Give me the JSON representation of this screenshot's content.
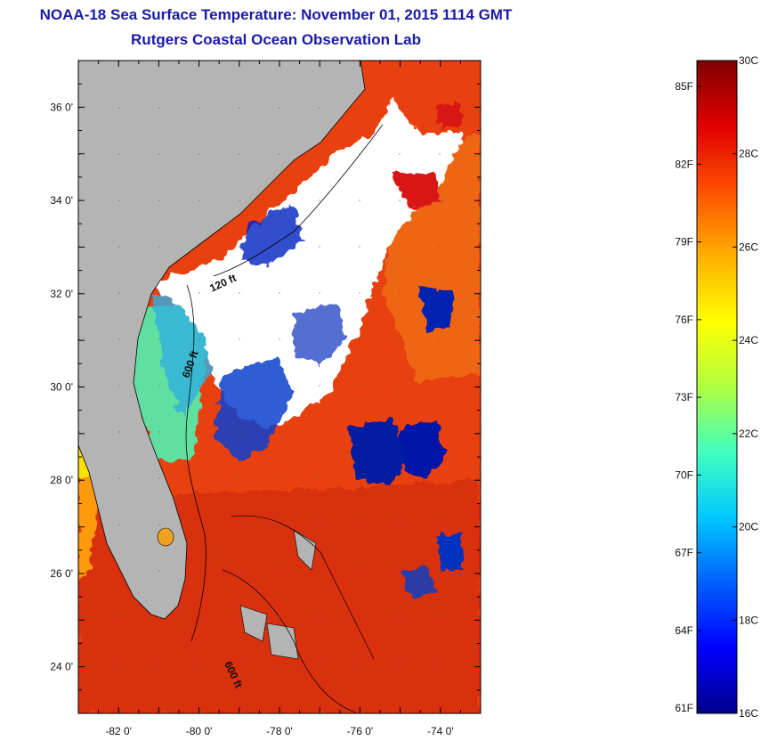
{
  "title": "NOAA-18 Sea Surface Temperature:  November 01, 2015 1114 GMT",
  "subtitle": "Rutgers Coastal Ocean Observation Lab",
  "map": {
    "lon_range": [
      -83,
      -73
    ],
    "lat_range": [
      23,
      37
    ],
    "lat_ticks": [
      {
        "value": 24,
        "label": "24 0'"
      },
      {
        "value": 26,
        "label": "26 0'"
      },
      {
        "value": 28,
        "label": "28 0'"
      },
      {
        "value": 30,
        "label": "30 0'"
      },
      {
        "value": 32,
        "label": "32 0'"
      },
      {
        "value": 34,
        "label": "34 0'"
      },
      {
        "value": 36,
        "label": "36 0'"
      }
    ],
    "lon_ticks": [
      {
        "value": -82,
        "label": "-82 0'"
      },
      {
        "value": -80,
        "label": "-80 0'"
      },
      {
        "value": -78,
        "label": "-78 0'"
      },
      {
        "value": -76,
        "label": "-76 0'"
      },
      {
        "value": -74,
        "label": "-74 0'"
      }
    ],
    "contour_labels": [
      "120 ft",
      "600 ft",
      "600 ft"
    ],
    "colors": {
      "land": "#b4b4b4",
      "cloud": "#ffffff",
      "warm_water": "#e83a10",
      "hot_water": "#c81414"
    }
  },
  "colorbar": {
    "celsius": [
      {
        "value": 30,
        "label": "30C"
      },
      {
        "value": 28,
        "label": "28C"
      },
      {
        "value": 26,
        "label": "26C"
      },
      {
        "value": 24,
        "label": "24C"
      },
      {
        "value": 22,
        "label": "22C"
      },
      {
        "value": 20,
        "label": "20C"
      },
      {
        "value": 18,
        "label": "18C"
      },
      {
        "value": 16,
        "label": "16C"
      }
    ],
    "fahrenheit": [
      {
        "value": 85,
        "label": "85F"
      },
      {
        "value": 82,
        "label": "82F"
      },
      {
        "value": 79,
        "label": "79F"
      },
      {
        "value": 76,
        "label": "76F"
      },
      {
        "value": 73,
        "label": "73F"
      },
      {
        "value": 70,
        "label": "70F"
      },
      {
        "value": 67,
        "label": "67F"
      },
      {
        "value": 64,
        "label": "64F"
      },
      {
        "value": 61,
        "label": "61F"
      }
    ],
    "min_c": 16,
    "max_c": 30,
    "colors": [
      "#00008c",
      "#0000ff",
      "#0060ff",
      "#00c8ff",
      "#40ffc0",
      "#b0ff40",
      "#ffff00",
      "#ffb000",
      "#ff5000",
      "#e00000",
      "#800000"
    ]
  }
}
